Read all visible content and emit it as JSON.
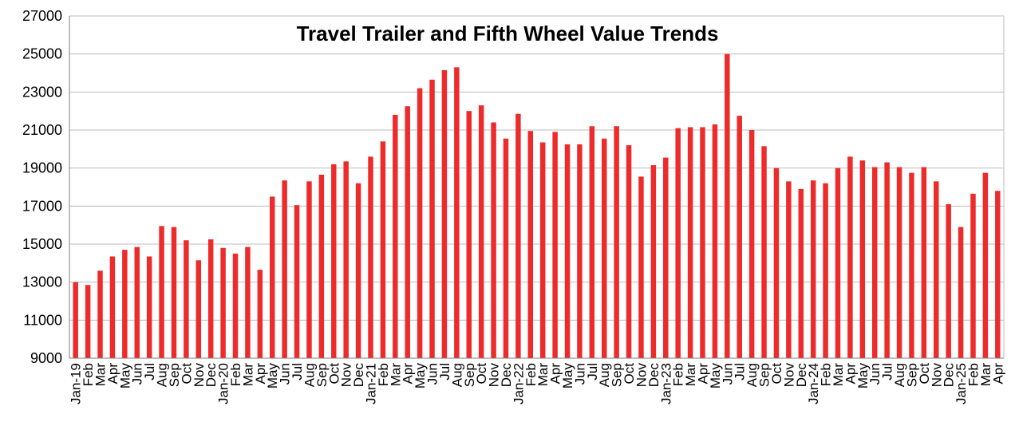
{
  "chart_data": {
    "type": "bar",
    "title": "Travel Trailer and Fifth Wheel Value Trends",
    "xlabel": "",
    "ylabel": "",
    "ylim": [
      9000,
      27000
    ],
    "yticks": [
      "9000",
      "11000",
      "13000",
      "15000",
      "17000",
      "19000",
      "21000",
      "23000",
      "25000",
      "27000"
    ],
    "grid": true,
    "bar_color": "#ee2b2b",
    "categories": [
      "Jan-19",
      "Feb",
      "Mar",
      "Apr",
      "May",
      "Jun",
      "Jul",
      "Aug",
      "Sep",
      "Oct",
      "Nov",
      "Dec",
      "Jan-20",
      "Feb",
      "Mar",
      "Apr",
      "May",
      "Jun",
      "Jul",
      "Aug",
      "Sep",
      "Oct",
      "Nov",
      "Dec",
      "Jan-21",
      "Feb",
      "Mar",
      "Apr",
      "May",
      "Jun",
      "Jul",
      "Aug",
      "Sep",
      "Oct",
      "Nov",
      "Dec",
      "Jan-22",
      "Feb",
      "Mar",
      "Apr",
      "May",
      "Jun",
      "Jul",
      "Aug",
      "Sep",
      "Oct",
      "Nov",
      "Dec",
      "Jan-23",
      "Feb",
      "Mar",
      "Apr",
      "May",
      "Jun",
      "Jul",
      "Aug",
      "Sep",
      "Oct",
      "Nov",
      "Dec",
      "Jan-24",
      "Feb",
      "Mar",
      "Apr",
      "May",
      "Jun",
      "Jul",
      "Aug",
      "Sep",
      "Oct",
      "Nov",
      "Dec",
      "Jan-25",
      "Feb",
      "Mar",
      "Apr"
    ],
    "values": [
      13000,
      12850,
      13600,
      14350,
      14700,
      14850,
      14350,
      15950,
      15900,
      15200,
      14150,
      15250,
      14800,
      14500,
      14850,
      13650,
      17500,
      18350,
      17050,
      18300,
      18650,
      19200,
      19350,
      18200,
      19600,
      20400,
      21800,
      22250,
      23200,
      23650,
      24150,
      24300,
      22000,
      22300,
      21400,
      20550,
      21850,
      20950,
      20350,
      20900,
      20250,
      20250,
      21200,
      20550,
      21200,
      20200,
      18550,
      19150,
      19550,
      21100,
      21150,
      21150,
      21300,
      25000,
      21750,
      21000,
      20150,
      19000,
      18300,
      17900,
      18350,
      18200,
      19000,
      19600,
      19400,
      19050,
      19300,
      19050,
      18750,
      19050,
      18300,
      17100,
      15900,
      17650,
      18750,
      17800
    ]
  }
}
